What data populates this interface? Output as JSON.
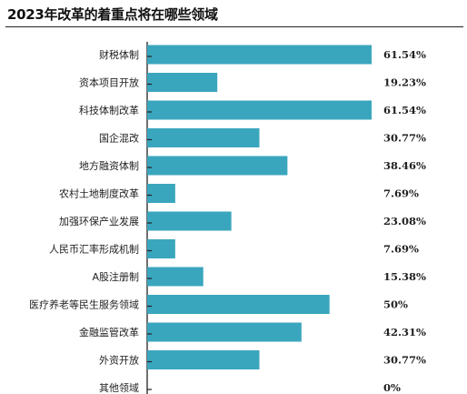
{
  "title": "2023年改革的着重点将在哪些领域",
  "colors": {
    "bar": "#3aa6bd",
    "axis": "#222222",
    "text": "#222222"
  },
  "chart_data": {
    "type": "bar",
    "orientation": "horizontal",
    "title": "2023年改革的着重点将在哪些领域",
    "categories": [
      "财税体制",
      "资本项目开放",
      "科技体制改革",
      "国企混改",
      "地方融资体制",
      "农村土地制度改革",
      "加强环保产业发展",
      "人民币汇率形成机制",
      "A股注册制",
      "医疗养老等民生服务领域",
      "金融监管改革",
      "外资开放",
      "其他领域"
    ],
    "values": [
      61.54,
      19.23,
      61.54,
      30.77,
      38.46,
      7.69,
      23.08,
      7.69,
      15.38,
      50,
      42.31,
      30.77,
      0
    ],
    "value_labels": [
      "61.54%",
      "19.23%",
      "61.54%",
      "30.77%",
      "38.46%",
      "7.69%",
      "23.08%",
      "7.69%",
      "15.38%",
      "50%",
      "42.31%",
      "30.77%",
      "0%"
    ],
    "xlim": [
      0,
      61.54
    ],
    "grid": false,
    "legend": "none"
  }
}
